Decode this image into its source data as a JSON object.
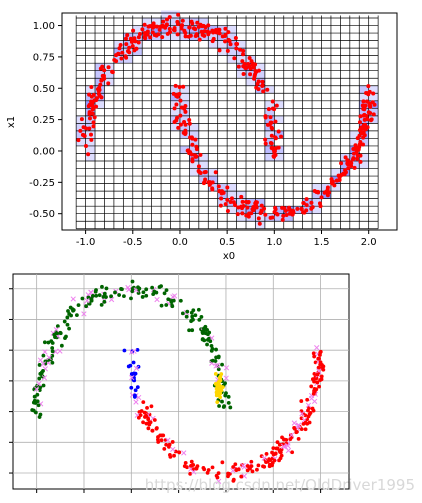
{
  "chart_data": [
    {
      "type": "scatter",
      "title": "",
      "xlabel": "x0",
      "ylabel": "x1",
      "xlim": [
        -1.25,
        2.3
      ],
      "ylim": [
        -0.63,
        1.1
      ],
      "xticks": [
        "-1.0",
        "-0.5",
        "0.0",
        "0.5",
        "1.0",
        "1.5",
        "2.0"
      ],
      "xtick_values": [
        -1.0,
        -0.5,
        0.0,
        0.5,
        1.0,
        1.5,
        2.0
      ],
      "yticks": [
        "1.00",
        "0.75",
        "0.50",
        "0.25",
        "0.00",
        "-0.25",
        "-0.50"
      ],
      "ytick_values": [
        1.0,
        0.75,
        0.5,
        0.25,
        0.0,
        -0.25,
        -0.5
      ],
      "grid_overlay": {
        "x_range": [
          -1.1,
          2.1
        ],
        "y_range": [
          -0.62,
          1.08
        ],
        "cell_x": 0.1,
        "cell_y": 0.06
      },
      "series": [
        {
          "color": "#ff0000",
          "marker": "circle",
          "description_points": "two interleaving half moons"
        }
      ],
      "moons": {
        "upper": {
          "center": [
            0.0,
            0.0
          ],
          "radius": 1.0,
          "theta_range_deg": [
            0,
            180
          ]
        },
        "lower": {
          "center": [
            1.0,
            0.5
          ],
          "radius": 1.0,
          "theta_range_deg": [
            180,
            360
          ]
        }
      },
      "highlight_color": "#8080ff"
    },
    {
      "type": "scatter",
      "title": "",
      "xlabel": "",
      "ylabel": "",
      "grid": true,
      "clusters": [
        {
          "color": "#006400",
          "marker": "circle",
          "region": "upper moon"
        },
        {
          "color": "#0000ff",
          "marker": "circle",
          "region": "lower moon left tip"
        },
        {
          "color": "#ffd700",
          "marker": "circle",
          "region": "small group near center"
        },
        {
          "color": "#ff0000",
          "marker": "circle",
          "region": "lower moon body"
        },
        {
          "color": "#ee82ee",
          "marker": "x",
          "region": "noise / outliers"
        }
      ]
    }
  ],
  "watermark": "https://blog.csdn.net/OldDriver1995"
}
